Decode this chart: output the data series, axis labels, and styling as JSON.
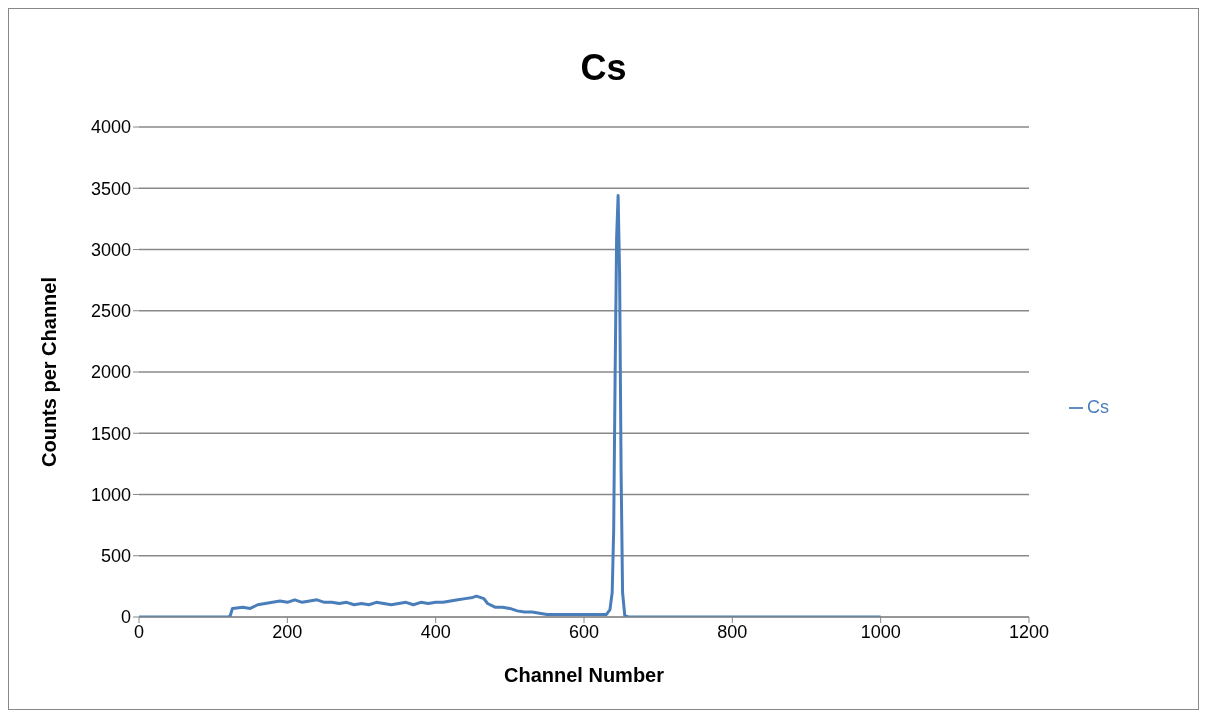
{
  "chart_data": {
    "type": "line",
    "title": "Cs",
    "xlabel": "Channel Number",
    "ylabel": "Counts per Channel",
    "x": [
      0,
      60,
      120,
      123,
      126,
      140,
      150,
      160,
      170,
      180,
      190,
      200,
      210,
      220,
      230,
      240,
      250,
      260,
      270,
      280,
      290,
      300,
      310,
      320,
      330,
      340,
      350,
      360,
      370,
      380,
      390,
      400,
      410,
      420,
      430,
      440,
      450,
      455,
      460,
      465,
      470,
      480,
      490,
      500,
      510,
      520,
      530,
      540,
      550,
      560,
      580,
      600,
      620,
      630,
      635,
      638,
      640,
      642,
      644,
      646,
      648,
      650,
      652,
      655,
      660,
      700,
      800,
      900,
      1000
    ],
    "series": [
      {
        "name": "Cs",
        "color": "#4a7ebb",
        "values": [
          0,
          0,
          0,
          10,
          70,
          80,
          70,
          100,
          110,
          120,
          130,
          120,
          140,
          120,
          130,
          140,
          120,
          120,
          110,
          120,
          100,
          110,
          100,
          120,
          110,
          100,
          110,
          120,
          100,
          120,
          110,
          120,
          120,
          130,
          140,
          150,
          160,
          170,
          160,
          150,
          110,
          80,
          80,
          70,
          50,
          40,
          40,
          30,
          20,
          20,
          20,
          20,
          20,
          20,
          60,
          200,
          700,
          2000,
          3100,
          3440,
          2800,
          1200,
          200,
          10,
          0,
          0,
          0,
          0,
          0
        ]
      }
    ],
    "xlim": [
      0,
      1200
    ],
    "xticks": [
      0,
      200,
      400,
      600,
      800,
      1000,
      1200
    ],
    "ylim": [
      0,
      4000
    ],
    "yticks": [
      0,
      500,
      1000,
      1500,
      2000,
      2500,
      3000,
      3500,
      4000
    ],
    "grid": "y",
    "legend": "right",
    "marker": "none",
    "line_style": "solid"
  }
}
